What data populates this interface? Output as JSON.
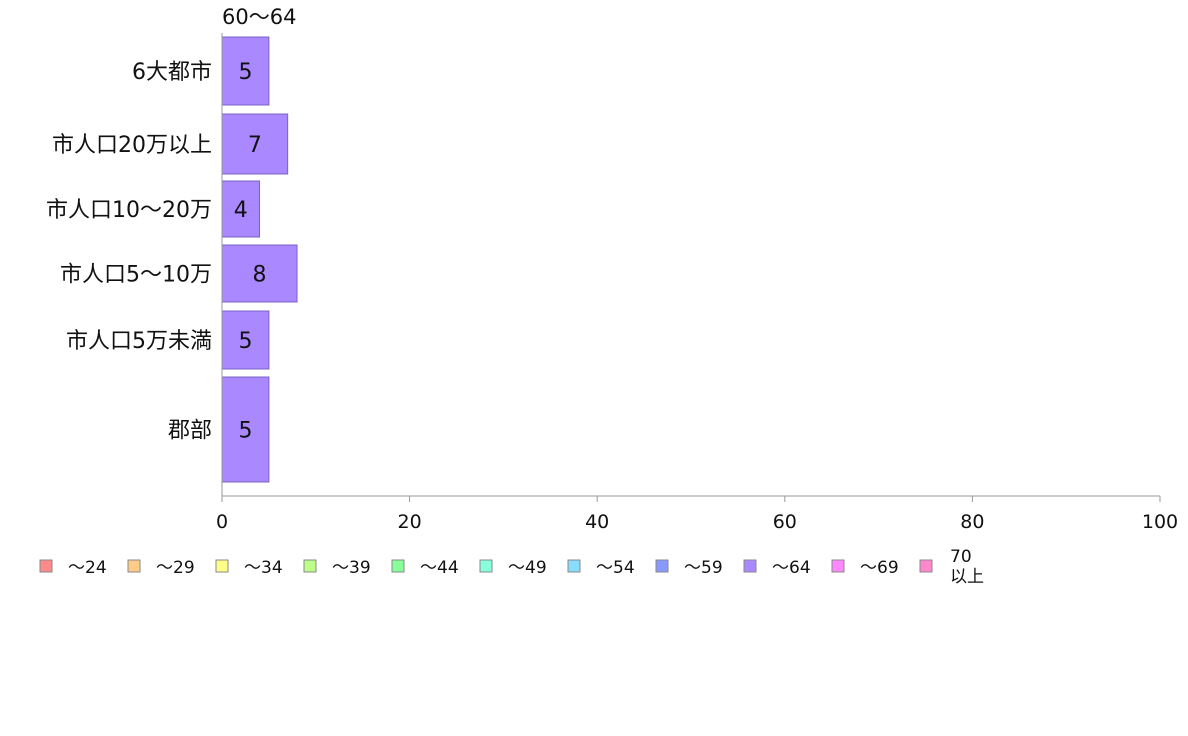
{
  "chart_data": {
    "type": "bar",
    "orientation": "horizontal",
    "stacked": true,
    "categories": [
      "6大都市",
      "市人口20万以上",
      "市人口10〜20万",
      "市人口5〜10万",
      "市人口5万未満",
      "郡部"
    ],
    "series": [
      {
        "name": "〜24",
        "color": "#ff8a8a",
        "values": [
          0,
          0,
          0,
          0,
          0,
          0
        ]
      },
      {
        "name": "〜29",
        "color": "#ffcc88",
        "values": [
          0,
          0,
          0,
          0,
          0,
          0
        ]
      },
      {
        "name": "〜34",
        "color": "#ffff88",
        "values": [
          0,
          0,
          0,
          0,
          0,
          0
        ]
      },
      {
        "name": "〜39",
        "color": "#bbff88",
        "values": [
          0,
          0,
          0,
          0,
          0,
          0
        ]
      },
      {
        "name": "〜44",
        "color": "#88ff99",
        "values": [
          0,
          0,
          0,
          0,
          0,
          0
        ]
      },
      {
        "name": "〜49",
        "color": "#88ffdd",
        "values": [
          0,
          0,
          0,
          0,
          0,
          0
        ]
      },
      {
        "name": "〜54",
        "color": "#88ddff",
        "values": [
          0,
          0,
          0,
          0,
          0,
          0
        ]
      },
      {
        "name": "〜59",
        "color": "#8899ff",
        "values": [
          0,
          0,
          0,
          0,
          0,
          0
        ]
      },
      {
        "name": "〜64",
        "color": "#aa88ff",
        "values": [
          5,
          7,
          4,
          8,
          5,
          5
        ]
      },
      {
        "name": "〜69",
        "color": "#ff88ff",
        "values": [
          0,
          0,
          0,
          0,
          0,
          0
        ]
      },
      {
        "name": "70\n以上",
        "color": "#ff88cc",
        "values": [
          0,
          0,
          0,
          0,
          0,
          0
        ]
      }
    ],
    "top_segment_label": "60〜64",
    "xlim": [
      0,
      100
    ],
    "xticks": [
      0,
      20,
      40,
      60,
      80,
      100
    ],
    "grid": false,
    "legend_position": "bottom"
  }
}
